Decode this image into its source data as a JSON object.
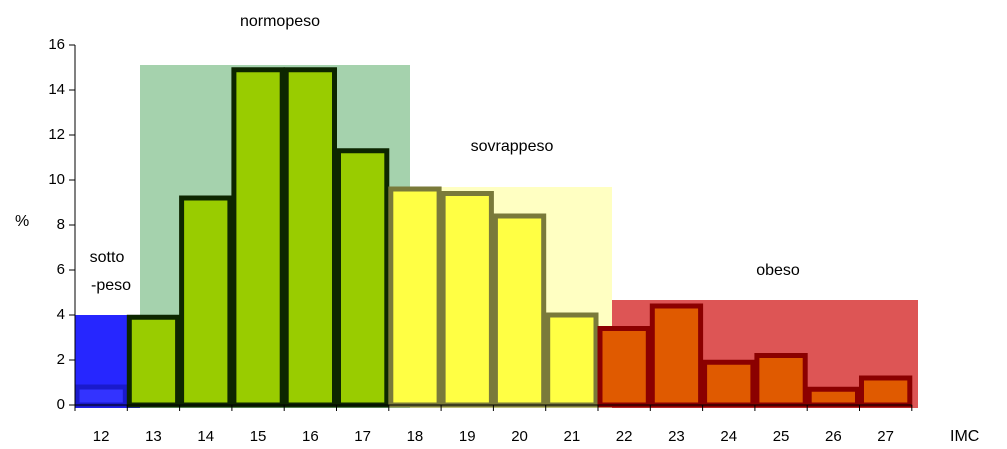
{
  "chart_data": {
    "type": "bar",
    "categories": [
      "12",
      "13",
      "14",
      "15",
      "16",
      "17",
      "18",
      "19",
      "20",
      "21",
      "22",
      "23",
      "24",
      "25",
      "26",
      "27"
    ],
    "values": [
      0.8,
      3.9,
      9.2,
      14.9,
      14.9,
      11.3,
      9.6,
      9.4,
      8.4,
      4.0,
      3.4,
      4.4,
      1.9,
      2.2,
      0.7,
      1.2
    ],
    "colors": [
      "#3333ff",
      "#99cc00",
      "#99cc00",
      "#99cc00",
      "#99cc00",
      "#99cc00",
      "#ffff44",
      "#ffff44",
      "#ffff44",
      "#ffff44",
      "#e05a00",
      "#e05a00",
      "#e05a00",
      "#e05a00",
      "#e05a00",
      "#e05a00"
    ],
    "edge_colors": [
      "#1a1acc",
      "#0d2600",
      "#0d2600",
      "#0d2600",
      "#0d2600",
      "#0d2600",
      "#7a7a3a",
      "#7a7a3a",
      "#7a7a3a",
      "#7a7a3a",
      "#8b0000",
      "#8b0000",
      "#8b0000",
      "#8b0000",
      "#8b0000",
      "#8b0000"
    ],
    "ylabel": "%",
    "xlabel": "IMC",
    "ylim": [
      0,
      16
    ],
    "yticks": [
      0,
      2,
      4,
      6,
      8,
      10,
      12,
      14,
      16
    ],
    "annotations": [
      [
        "sotto",
        "-peso"
      ],
      [
        "normopeso"
      ],
      [
        "sovrappeso"
      ],
      [
        "obeso"
      ]
    ]
  }
}
